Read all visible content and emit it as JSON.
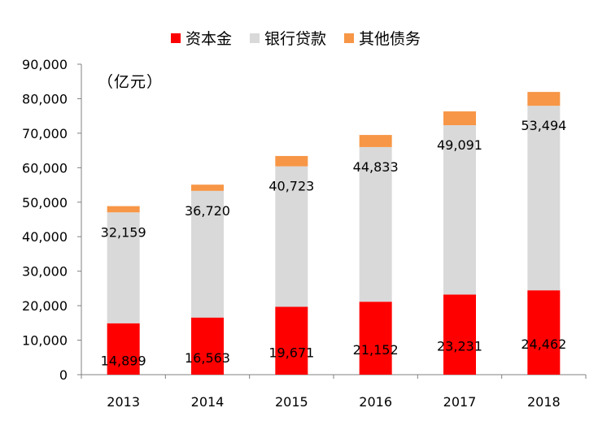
{
  "chart_data": {
    "type": "bar",
    "stacked": true,
    "unit_label": "（亿元）",
    "categories": [
      "2013",
      "2014",
      "2015",
      "2016",
      "2017",
      "2018"
    ],
    "series": [
      {
        "name": "资本金",
        "color": "#ff0000",
        "values": [
          14899,
          16563,
          19671,
          21152,
          23231,
          24462
        ],
        "labels": [
          "14,899",
          "16,563",
          "19,671",
          "21,152",
          "23,231",
          "24,462"
        ]
      },
      {
        "name": "银行贷款",
        "color": "#d9d9d9",
        "values": [
          32159,
          36720,
          40723,
          44833,
          49091,
          53494
        ],
        "labels": [
          "32,159",
          "36,720",
          "40,723",
          "44,833",
          "49,091",
          "53,494"
        ]
      },
      {
        "name": "其他债务",
        "color": "#f79646",
        "values": [
          1800,
          1800,
          3000,
          3500,
          4000,
          4000
        ]
      }
    ],
    "ylim": [
      0,
      90000
    ],
    "yticks": [
      "0",
      "10,000",
      "20,000",
      "30,000",
      "40,000",
      "50,000",
      "60,000",
      "70,000",
      "80,000",
      "90,000"
    ],
    "legend_position": "top"
  }
}
